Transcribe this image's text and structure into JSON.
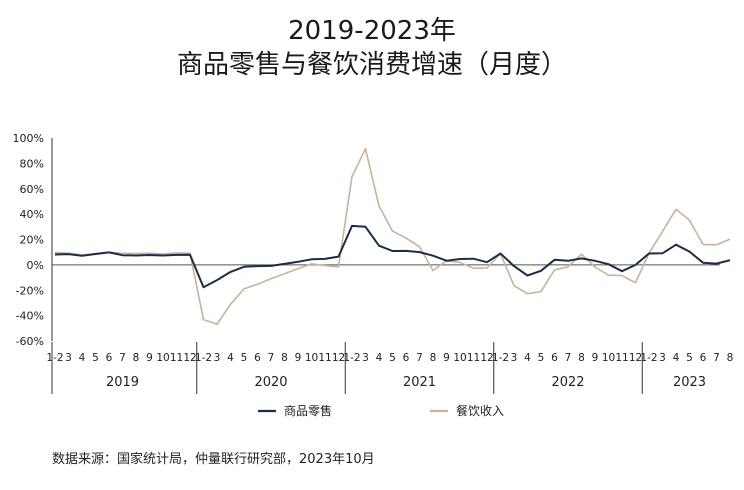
{
  "chart_data": {
    "type": "line",
    "title": "2019-2023年",
    "subtitle": "商品零售与餐饮消费增速（月度）",
    "ylim": [
      -60,
      100
    ],
    "yticks": [
      "100%",
      "80%",
      "60%",
      "40%",
      "20%",
      "0%",
      "-20%",
      "-40%",
      "-60%"
    ],
    "ytick_values": [
      100,
      80,
      60,
      40,
      20,
      0,
      -20,
      -40,
      -60
    ],
    "years": [
      {
        "label": "2019",
        "months": [
          "1-2",
          "3",
          "4",
          "5",
          "6",
          "7",
          "8",
          "9",
          "10",
          "11",
          "12"
        ]
      },
      {
        "label": "2020",
        "months": [
          "1-2",
          "3",
          "4",
          "5",
          "6",
          "7",
          "8",
          "9",
          "10",
          "11",
          "12"
        ]
      },
      {
        "label": "2021",
        "months": [
          "1-2",
          "3",
          "4",
          "5",
          "6",
          "7",
          "8",
          "9",
          "10",
          "11",
          "12"
        ]
      },
      {
        "label": "2022",
        "months": [
          "1-2",
          "3",
          "4",
          "5",
          "6",
          "7",
          "8",
          "9",
          "10",
          "11",
          "12"
        ]
      },
      {
        "label": "2023",
        "months": [
          "1-2",
          "3",
          "4",
          "5",
          "6",
          "7",
          "8"
        ]
      }
    ],
    "series": [
      {
        "name": "商品零售",
        "color": "#1c2e45",
        "values": [
          8.2,
          8.5,
          7.2,
          8.6,
          9.8,
          7.6,
          7.4,
          7.8,
          7.4,
          7.9,
          8.0,
          -17.6,
          -12.0,
          -5.5,
          -1.5,
          -1.0,
          -0.8,
          0.8,
          2.4,
          4.4,
          4.7,
          6.5,
          30.7,
          30.0,
          15.1,
          10.9,
          11.0,
          10.1,
          7.2,
          3.3,
          4.6,
          4.9,
          2.1,
          9.0,
          -1.0,
          -8.4,
          -4.7,
          4.0,
          3.2,
          5.1,
          3.2,
          0.5,
          -5.0,
          0.0,
          9.0,
          9.1,
          15.9,
          10.5,
          1.7,
          1.0,
          3.7
        ]
      },
      {
        "name": "餐饮收入",
        "color": "#c9b29b",
        "values": [
          9.7,
          9.2,
          7.7,
          8.8,
          10.0,
          9.1,
          9.0,
          9.2,
          8.6,
          9.4,
          9.2,
          -43.1,
          -46.8,
          -31.1,
          -18.9,
          -15.2,
          -11.0,
          -7.0,
          -2.9,
          0.8,
          -0.6,
          -1.5,
          69.6,
          91.6,
          46.4,
          26.6,
          21.1,
          14.3,
          -4.5,
          3.1,
          2.0,
          -2.7,
          -2.5,
          8.9,
          -16.4,
          -22.7,
          -21.1,
          -4.0,
          -1.5,
          8.4,
          -1.7,
          -8.1,
          -8.4,
          -14.1,
          9.2,
          26.3,
          43.8,
          35.1,
          16.1,
          15.8,
          20.3
        ]
      }
    ],
    "legend_position": "bottom-center",
    "grid": false
  },
  "source": "数据来源：国家统计局，仲量联行研究部，2023年10月"
}
